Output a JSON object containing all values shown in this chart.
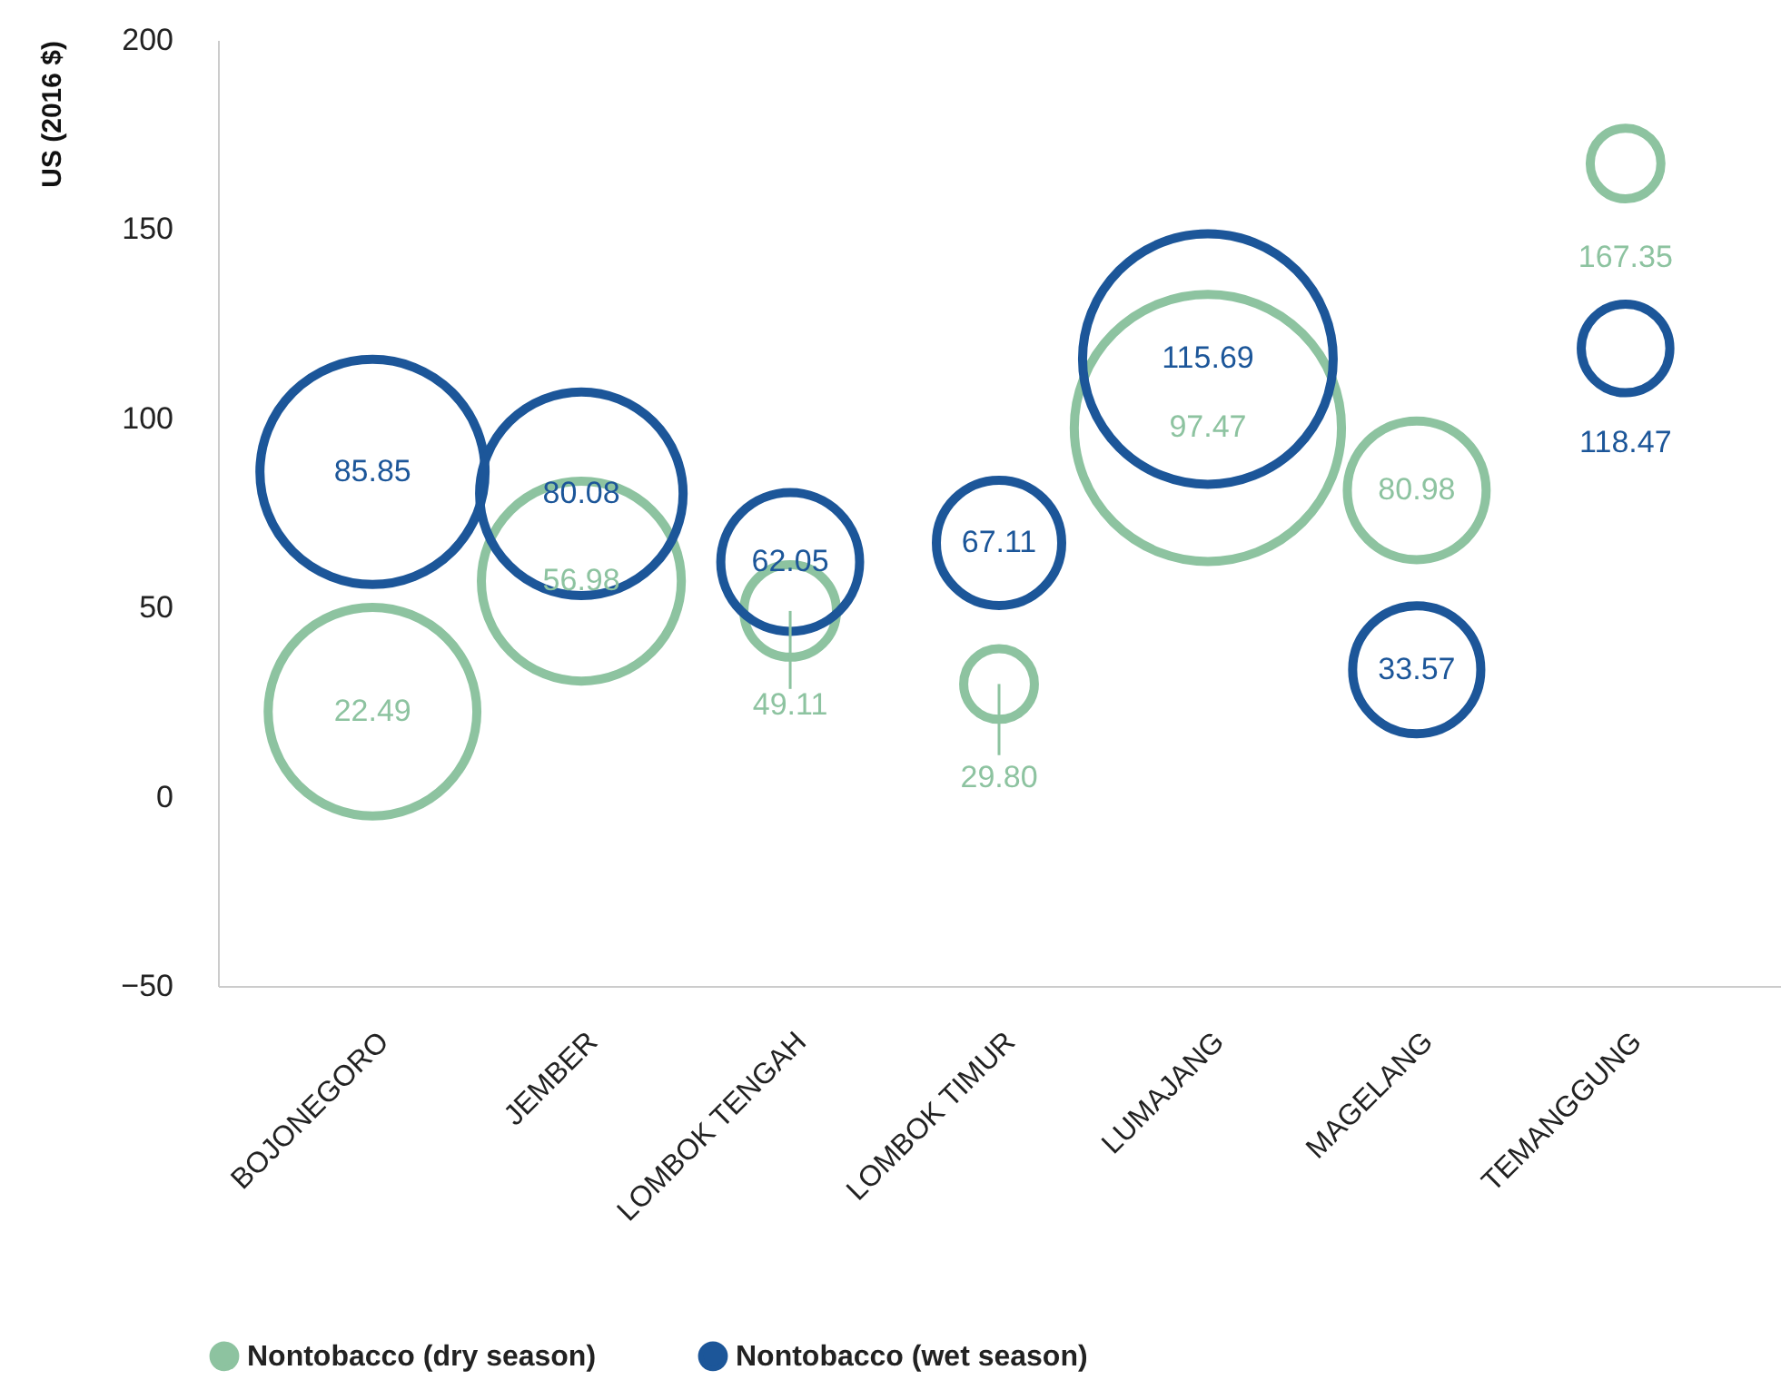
{
  "chart_data": {
    "type": "bubble",
    "ylabel": "US (2016 $)",
    "categories": [
      "BOJONEGORO",
      "JEMBER",
      "LOMBOK TENGAH",
      "LOMBOK TIMUR",
      "LUMAJANG",
      "MAGELANG",
      "TEMANGGUNG"
    ],
    "series": [
      {
        "name": "Nontobacco (dry season)",
        "color": "#8dc3a0",
        "values": [
          22.49,
          56.98,
          49.11,
          29.8,
          97.47,
          80.98,
          167.35
        ],
        "sizes": [
          0.61,
          0.56,
          0.12,
          0.07,
          1,
          0.27,
          0.07
        ],
        "value_labels": [
          "22.49",
          "56.98",
          "49.11",
          "29.80",
          "97.47",
          "80.98",
          "167.35"
        ],
        "errors": [
          null,
          null,
          [
            28.5,
            49.11
          ],
          [
            11,
            29.8
          ],
          null,
          null,
          null
        ]
      },
      {
        "name": "Nontobacco (wet season)",
        "color": "#1c5699",
        "values": [
          85.85,
          80.08,
          62.05,
          67.11,
          115.69,
          33.57,
          118.47
        ],
        "sizes": [
          0.71,
          0.58,
          0.27,
          0.22,
          0.88,
          0.23,
          0.11
        ],
        "value_labels": [
          "85.85",
          "80.08",
          "62.05",
          "67.11",
          "115.69",
          "33.57",
          "118.47"
        ]
      }
    ],
    "ylim": [
      -50,
      200
    ],
    "yticks": [
      -50,
      0,
      50,
      100,
      150,
      200
    ],
    "grid": false,
    "data_labels": true,
    "legend": "bottom left",
    "marker": "circle"
  }
}
